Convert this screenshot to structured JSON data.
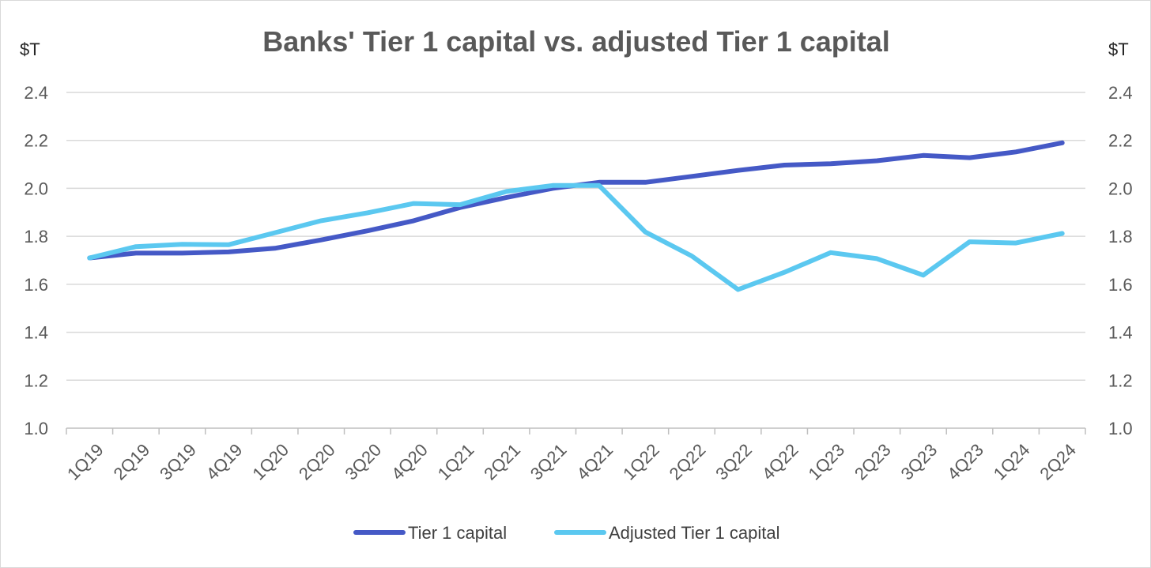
{
  "chart_data": {
    "type": "line",
    "title": "Banks' Tier 1 capital vs. adjusted Tier 1 capital",
    "ylabel_left": "$T",
    "ylabel_right": "$T",
    "ylim": [
      1.0,
      2.4
    ],
    "yticks": [
      "1.0",
      "1.2",
      "1.4",
      "1.6",
      "1.8",
      "2.0",
      "2.2",
      "2.4"
    ],
    "categories": [
      "1Q19",
      "2Q19",
      "3Q19",
      "4Q19",
      "1Q20",
      "2Q20",
      "3Q20",
      "4Q20",
      "1Q21",
      "2Q21",
      "3Q21",
      "4Q21",
      "1Q22",
      "2Q22",
      "3Q22",
      "4Q22",
      "1Q23",
      "2Q23",
      "3Q23",
      "4Q23",
      "1Q24",
      "2Q24"
    ],
    "grid": true,
    "legend_position": "bottom",
    "series": [
      {
        "name": "Tier 1 capital",
        "color": "#4559c6",
        "values": [
          1.71,
          1.73,
          1.73,
          1.735,
          1.75,
          1.785,
          1.823,
          1.865,
          1.92,
          1.962,
          2.0,
          2.025,
          2.025,
          2.05,
          2.075,
          2.097,
          2.103,
          2.115,
          2.137,
          2.128,
          2.152,
          2.19
        ]
      },
      {
        "name": "Adjusted Tier 1 capital",
        "color": "#5bc8f0",
        "values": [
          1.71,
          1.757,
          1.767,
          1.765,
          1.815,
          1.865,
          1.898,
          1.937,
          1.932,
          1.987,
          2.012,
          2.012,
          1.818,
          1.718,
          1.578,
          1.65,
          1.732,
          1.707,
          1.638,
          1.777,
          1.772,
          1.812
        ]
      }
    ]
  }
}
